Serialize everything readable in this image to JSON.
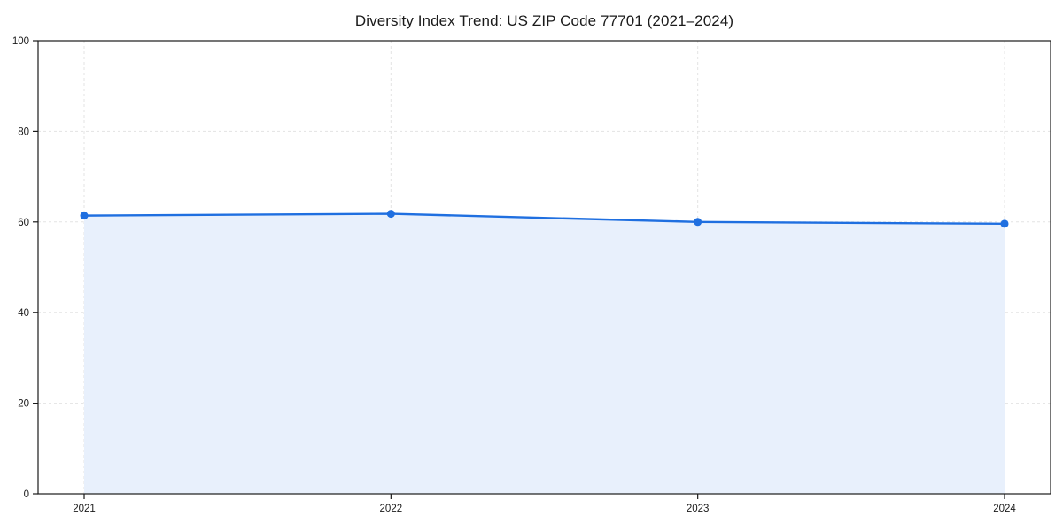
{
  "title": "Diversity Index Trend: US ZIP Code 77701 (2021–2024)",
  "chart_data": {
    "type": "area",
    "title": "Diversity Index Trend: US ZIP Code 77701 (2021–2024)",
    "categories": [
      "2021",
      "2022",
      "2023",
      "2024"
    ],
    "series": [
      {
        "name": "Diversity Index",
        "values": [
          61.4,
          61.8,
          60.0,
          59.6
        ]
      }
    ],
    "xlabel": "",
    "ylabel": "",
    "ylim": [
      0,
      100
    ],
    "yticks": [
      0,
      20,
      40,
      60,
      80,
      100
    ],
    "grid": "dashed, horizontal and vertical",
    "legend_position": "none",
    "colors": {
      "line": "#1f6fe0",
      "marker": "#1f6fe0",
      "fill": "#e8f0fc",
      "gridline": "#e3e3e3",
      "axis": "#1a1a1a",
      "text": "#1a1a1a",
      "background": "#ffffff"
    }
  }
}
